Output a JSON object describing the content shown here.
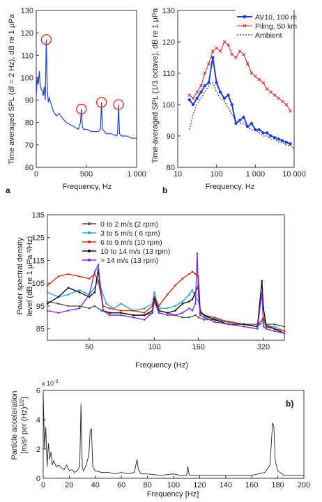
{
  "chart_data": [
    {
      "type": "line",
      "panel": "a",
      "xlabel": "Frequency, Hz",
      "ylabel": "Time averaged SPL (df = 2 Hz), dB re 1 μPa",
      "xlim": [
        0,
        1000
      ],
      "ylim": [
        60,
        130
      ],
      "xticks": [
        0,
        500,
        1000
      ],
      "xtick_labels": [
        "0",
        "500",
        "1 000"
      ],
      "yticks": [
        60,
        70,
        80,
        90,
        100,
        110,
        120,
        130
      ],
      "color": "#1f3fcf",
      "x": [
        0,
        10,
        20,
        30,
        40,
        50,
        60,
        70,
        80,
        90,
        100,
        110,
        120,
        130,
        150,
        170,
        200,
        230,
        260,
        300,
        340,
        380,
        420,
        440,
        450,
        460,
        470,
        500,
        550,
        600,
        620,
        640,
        650,
        660,
        680,
        700,
        750,
        800,
        810,
        820,
        830,
        850,
        900,
        950,
        1000
      ],
      "values": [
        92,
        100,
        97,
        103,
        96,
        95,
        94,
        92,
        96,
        90,
        117,
        95,
        89,
        91,
        88,
        85,
        83,
        84,
        82,
        80,
        79,
        78,
        77,
        80,
        86,
        78,
        77,
        77,
        76,
        76,
        76,
        77,
        89,
        77,
        76,
        75,
        75,
        74,
        75,
        88,
        75,
        74,
        74,
        73,
        73
      ],
      "highlight_x": [
        100,
        450,
        650,
        820
      ],
      "highlight_y": [
        117,
        86,
        89,
        88
      ],
      "highlight_color": "#e02020"
    },
    {
      "type": "line",
      "panel": "b",
      "xlabel": "Frequency, Hz",
      "ylabel": "Time-averaged SPL (1/3 octave), dB re 1 μPa",
      "xscale": "log",
      "xlim": [
        10,
        10000
      ],
      "ylim": [
        80,
        130
      ],
      "xticks": [
        10,
        100,
        1000,
        10000
      ],
      "xtick_labels": [
        "10",
        "100",
        "1 000",
        "10 000"
      ],
      "yticks": [
        80,
        90,
        100,
        110,
        120,
        130
      ],
      "legend": "top-right",
      "series": [
        {
          "name": "AV10, 100 m",
          "color": "#1f3fcf",
          "x": [
            20,
            25,
            31.5,
            40,
            50,
            63,
            80,
            100,
            125,
            160,
            200,
            250,
            315,
            400,
            500,
            630,
            800,
            1000,
            1250,
            1600,
            2000,
            2500,
            3150,
            4000,
            5000,
            6300,
            8000
          ],
          "values": [
            101.5,
            100,
            102,
            104,
            106,
            107,
            115,
            107,
            104,
            102,
            103,
            100,
            94,
            95,
            96,
            93,
            94,
            92,
            92,
            91,
            91,
            90,
            89.5,
            89,
            88.5,
            88,
            87.5
          ]
        },
        {
          "name": "Piling, 50 km",
          "color": "#d42020",
          "x": [
            20,
            25,
            31.5,
            40,
            50,
            63,
            80,
            100,
            125,
            160,
            200,
            250,
            315,
            400,
            500,
            630,
            800,
            1000,
            1250,
            1600,
            2000,
            2500,
            3150,
            4000,
            5000,
            6300,
            8000
          ],
          "values": [
            103,
            102,
            104,
            106,
            110,
            113,
            117,
            118,
            117,
            120,
            119,
            116,
            115,
            117,
            116,
            113,
            110,
            109,
            108,
            107,
            105,
            104,
            103,
            102,
            101,
            100,
            98
          ]
        },
        {
          "name": "Ambient",
          "color": "#111111",
          "x": [
            20,
            25,
            31.5,
            40,
            50,
            63,
            80,
            100,
            125,
            160,
            200,
            250,
            315,
            400,
            500,
            630,
            800,
            1000,
            1250,
            1600,
            2000,
            2500,
            3150,
            4000,
            5000,
            6300,
            8000,
            10000
          ],
          "values": [
            92,
            97,
            100,
            102,
            104,
            106,
            107,
            104,
            102,
            101,
            99,
            97,
            95,
            94,
            94,
            93,
            92,
            92,
            91,
            90,
            90,
            89,
            89,
            88,
            88,
            87,
            87,
            86
          ]
        }
      ]
    },
    {
      "type": "line",
      "xlabel": "Frequency (Hz)",
      "ylabel": "Power  spectral density level (dB re 1 μPa ²/Hz)",
      "xscale": "log",
      "xlim": [
        32,
        400
      ],
      "ylim": [
        80,
        135
      ],
      "xticks": [
        50,
        100,
        160,
        320
      ],
      "yticks": [
        85,
        95,
        105,
        115,
        125,
        135
      ],
      "legend": "top",
      "series": [
        {
          "name": "0 to 2 m/s (2 rpm)",
          "color": "#555555",
          "x": [
            32,
            36,
            40,
            45,
            50,
            53,
            57,
            63,
            70,
            80,
            90,
            98,
            100,
            105,
            115,
            125,
            135,
            145,
            155,
            160,
            170,
            190,
            220,
            260,
            300,
            320,
            330,
            360,
            400
          ],
          "values": [
            97,
            96,
            95,
            95,
            94,
            95,
            93,
            92,
            92,
            91,
            91,
            92,
            99,
            93,
            92,
            91,
            90,
            90,
            91,
            90,
            89,
            89,
            88,
            87,
            87,
            89,
            87,
            87,
            86
          ]
        },
        {
          "name": "3 to 5 m/s ( 6 rpm)",
          "color": "#2a9fd8",
          "x": [
            32,
            36,
            40,
            45,
            50,
            53,
            55,
            60,
            65,
            70,
            80,
            90,
            98,
            100,
            105,
            115,
            125,
            135,
            145,
            150,
            155,
            160,
            165,
            175,
            200,
            230,
            260,
            300,
            320,
            330,
            360,
            400
          ],
          "values": [
            101,
            99,
            100,
            102,
            100,
            103,
            106,
            96,
            94,
            96,
            93,
            94,
            96,
            101,
            94,
            94,
            95,
            97,
            100,
            102,
            99,
            97,
            92,
            90,
            89,
            88,
            87,
            86,
            88,
            86,
            86,
            84
          ]
        },
        {
          "name": "6 to 9 m/s (10 rpm)",
          "color": "#d03010",
          "x": [
            32,
            36,
            40,
            45,
            50,
            53,
            55,
            58,
            62,
            70,
            80,
            90,
            98,
            100,
            105,
            115,
            125,
            135,
            145,
            150,
            155,
            160,
            163,
            170,
            190,
            220,
            260,
            300,
            320,
            330,
            360,
            400
          ],
          "values": [
            104,
            108,
            109,
            108,
            107,
            109,
            106,
            95,
            94,
            93,
            93,
            92,
            95,
            99,
            95,
            100,
            104,
            107,
            109,
            110,
            109,
            108,
            93,
            91,
            90,
            88,
            87,
            86,
            90,
            87,
            85,
            84
          ]
        },
        {
          "name": "10 to 14 m/s (13 rpm)",
          "color": "#111111",
          "x": [
            32,
            36,
            40,
            45,
            50,
            53,
            55,
            58,
            62,
            70,
            80,
            90,
            98,
            100,
            105,
            115,
            125,
            135,
            145,
            150,
            155,
            160,
            163,
            170,
            190,
            220,
            260,
            300,
            315,
            320,
            330,
            360,
            400
          ],
          "values": [
            96,
            99,
            103,
            101,
            99,
            101,
            111,
            93,
            92,
            92,
            91,
            91,
            93,
            98,
            93,
            92,
            93,
            96,
            97,
            98,
            101,
            104,
            92,
            91,
            89,
            87,
            87,
            86,
            106,
            94,
            86,
            85,
            83
          ]
        },
        {
          "name": "> 14 m/s (13 rpm)",
          "color": "#7a2fd0",
          "x": [
            32,
            36,
            40,
            45,
            50,
            53,
            55,
            58,
            62,
            70,
            80,
            90,
            98,
            100,
            105,
            115,
            125,
            135,
            145,
            150,
            155,
            158,
            160,
            163,
            170,
            190,
            220,
            260,
            300,
            315,
            320,
            330,
            360,
            400
          ],
          "values": [
            93,
            92,
            93,
            94,
            100,
            110,
            113,
            93,
            91,
            91,
            90,
            89,
            92,
            97,
            92,
            91,
            91,
            92,
            94,
            93,
            96,
            118,
            100,
            91,
            90,
            88,
            87,
            86,
            85,
            101,
            86,
            85,
            84,
            83
          ]
        }
      ]
    },
    {
      "type": "line",
      "panel": "b)",
      "xlabel": "Frequency [Hz]",
      "ylabel": "Particle acceleration [m/s² per (Hz) ¹ᐟ²]",
      "ylabel_line1": "Particle acceleration",
      "ylabel_line2": "[m/s² per (Hz)",
      "ylabel_sup": "1/2",
      "ylabel_end": "]",
      "xlim": [
        0,
        200
      ],
      "ylim": [
        0,
        0.006
      ],
      "xticks": [
        0,
        20,
        40,
        60,
        80,
        100,
        120,
        140,
        160,
        180,
        200
      ],
      "yticks": [
        0,
        2,
        4,
        6
      ],
      "ytick_multiplier": "x 10",
      "ytick_exponent": "-3",
      "color": "#222222",
      "x": [
        0,
        1,
        2,
        3,
        4,
        5,
        6,
        7,
        8,
        10,
        12,
        14,
        16,
        18,
        20,
        22,
        24,
        26,
        28,
        29,
        30,
        31,
        33,
        35,
        36,
        37,
        38,
        40,
        45,
        50,
        55,
        60,
        65,
        70,
        72,
        73,
        75,
        80,
        90,
        100,
        105,
        110,
        111,
        112,
        120,
        130,
        140,
        150,
        160,
        165,
        170,
        174,
        176,
        177,
        178,
        180,
        185,
        190,
        200
      ],
      "values": [
        0.0059,
        0.002,
        0.0035,
        0.0008,
        0.0024,
        0.0013,
        0.0018,
        0.0009,
        0.0012,
        0.0008,
        0.0009,
        0.0007,
        0.0006,
        0.0009,
        0.0005,
        0.0006,
        0.0004,
        0.0005,
        0.0008,
        0.0051,
        0.0007,
        0.0005,
        0.0009,
        0.0016,
        0.0032,
        0.0034,
        0.0008,
        0.0005,
        0.0004,
        0.0004,
        0.0003,
        0.0004,
        0.0003,
        0.0004,
        0.0013,
        0.0006,
        0.0003,
        0.0003,
        0.0002,
        0.0003,
        0.0002,
        0.0002,
        0.0008,
        0.0002,
        0.0002,
        0.0002,
        0.0002,
        0.0002,
        0.0002,
        0.0003,
        0.0004,
        0.0009,
        0.0038,
        0.0035,
        0.0012,
        0.0005,
        0.0002,
        0.0002,
        0.0002
      ]
    }
  ]
}
